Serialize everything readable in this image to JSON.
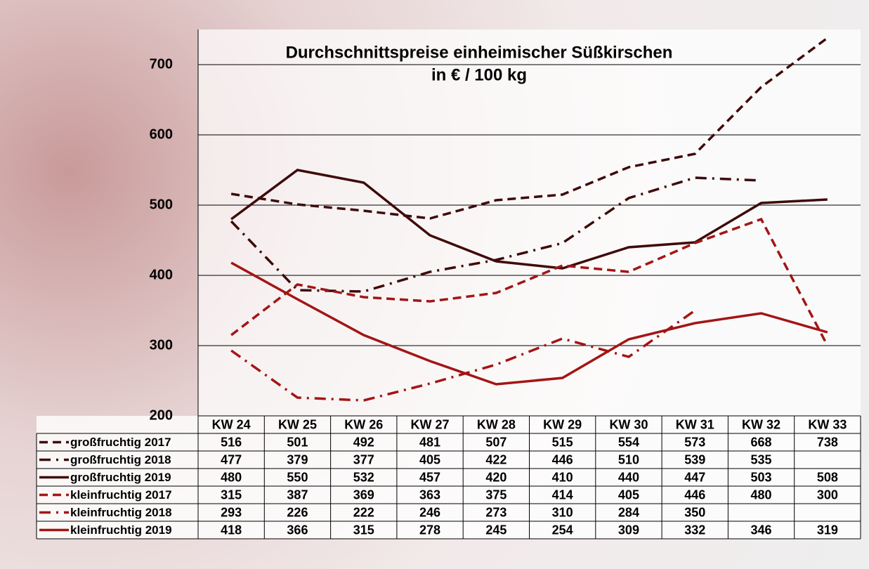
{
  "chart_data": {
    "type": "line",
    "title": "Durchschnittspreise einheimischer Süßkirschen",
    "subtitle": "in € / 100 kg",
    "categories": [
      "KW 24",
      "KW 25",
      "KW 26",
      "KW 27",
      "KW 28",
      "KW 29",
      "KW 30",
      "KW 31",
      "KW 32",
      "KW 33"
    ],
    "ylim": [
      200,
      750
    ],
    "yticks": [
      200,
      300,
      400,
      500,
      600,
      700
    ],
    "grid": true,
    "series": [
      {
        "name": "großfruchtig 2017",
        "color": "#3f0a0a",
        "line_style": "dashed",
        "values": [
          516,
          501,
          492,
          481,
          507,
          515,
          554,
          573,
          668,
          738
        ]
      },
      {
        "name": "großfruchtig 2018",
        "color": "#3f0a0a",
        "line_style": "dashdot",
        "values": [
          477,
          379,
          377,
          405,
          422,
          446,
          510,
          539,
          535,
          null
        ]
      },
      {
        "name": "großfruchtig 2019",
        "color": "#3f0a0a",
        "line_style": "solid",
        "values": [
          480,
          550,
          532,
          457,
          420,
          410,
          440,
          447,
          503,
          508
        ]
      },
      {
        "name": "kleinfruchtig 2017",
        "color": "#a31515",
        "line_style": "dashed",
        "values": [
          315,
          387,
          369,
          363,
          375,
          414,
          405,
          446,
          480,
          300
        ]
      },
      {
        "name": "kleinfruchtig 2018",
        "color": "#a31515",
        "line_style": "dashdot",
        "values": [
          293,
          226,
          222,
          246,
          273,
          310,
          284,
          350,
          null,
          null
        ]
      },
      {
        "name": "kleinfruchtig 2019",
        "color": "#a31515",
        "line_style": "solid",
        "values": [
          418,
          366,
          315,
          278,
          245,
          254,
          309,
          332,
          346,
          319
        ]
      }
    ]
  }
}
